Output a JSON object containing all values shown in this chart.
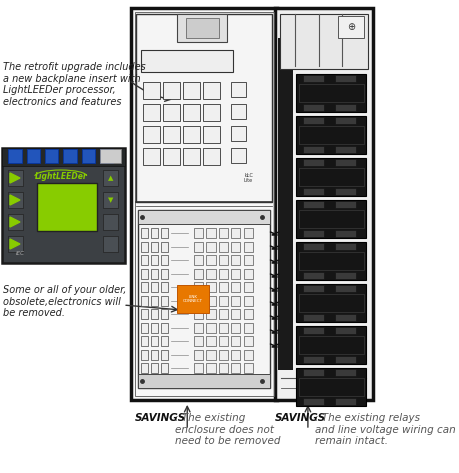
{
  "bg_color": "#ffffff",
  "annotation1": "The retrofit upgrade includes\na new backplane insert with\nLightLEEDer processor,\nelectronics and features",
  "annotation2": "Some or all of your older,\nobsolete,electronics will\nbe removed.",
  "savings1_bold": "SAVINGS",
  "savings1_rest": ": The existing\nenclosure does not\nneed to be removed",
  "savings2_bold": "SAVINGS",
  "savings2_rest": ": The existing relays\nand line voltage wiring can\nremain intact."
}
